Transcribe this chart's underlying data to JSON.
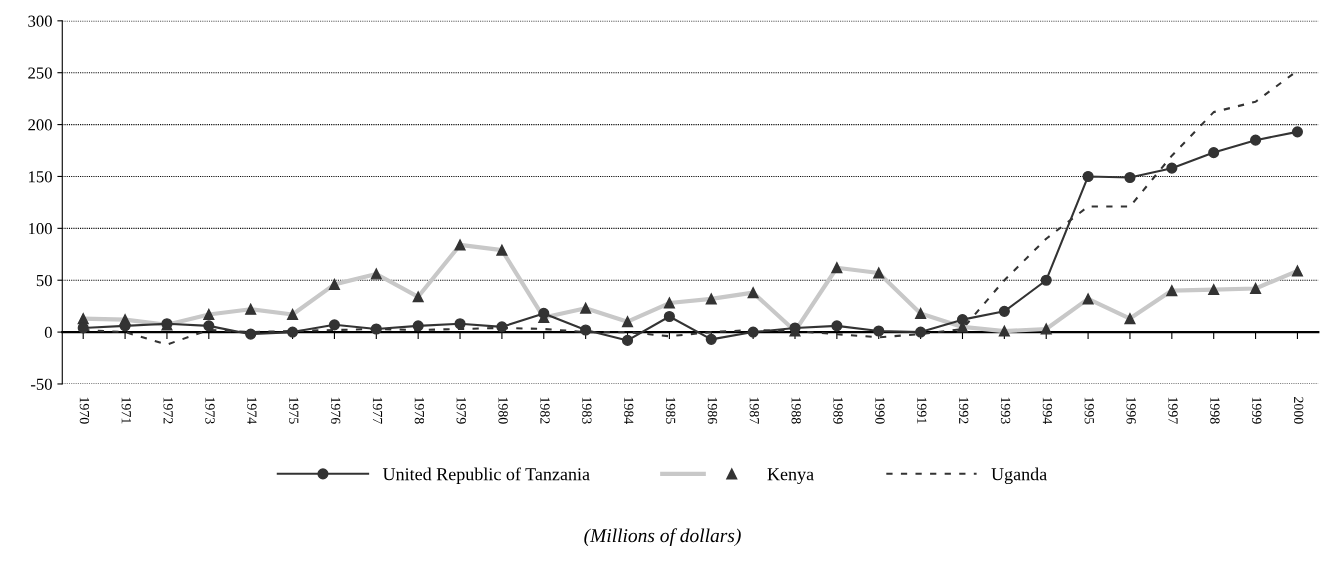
{
  "chart_data": {
    "type": "line",
    "categories": [
      "1970",
      "1971",
      "1972",
      "1973",
      "1974",
      "1975",
      "1976",
      "1977",
      "1978",
      "1979",
      "1980",
      "1982",
      "1983",
      "1984",
      "1985",
      "1986",
      "1987",
      "1988",
      "1989",
      "1990",
      "1991",
      "1992",
      "1993",
      "1994",
      "1995",
      "1996",
      "1997",
      "1998",
      "1999",
      "2000"
    ],
    "series": [
      {
        "name": "United Republic of Tanzania",
        "color": "#333333",
        "marker": "circle",
        "line_style": "solid",
        "values": [
          4,
          6,
          8,
          6,
          -2,
          0,
          7,
          3,
          6,
          8,
          5,
          18,
          2,
          -8,
          15,
          -7,
          0,
          4,
          6,
          1,
          0,
          12,
          20,
          50,
          150,
          149,
          158,
          173,
          185,
          193
        ]
      },
      {
        "name": "Kenya",
        "color": "#c8c8c8",
        "marker": "triangle",
        "line_style": "solid",
        "values": [
          13,
          12,
          7,
          17,
          22,
          17,
          46,
          56,
          34,
          84,
          79,
          14,
          23,
          10,
          28,
          32,
          38,
          1,
          62,
          57,
          18,
          5,
          1,
          3,
          32,
          13,
          40,
          41,
          42,
          59
        ]
      },
      {
        "name": "Uganda",
        "color": "#333333",
        "marker": "none",
        "line_style": "dashed",
        "values": [
          2,
          0,
          -12,
          2,
          0,
          1,
          2,
          3,
          2,
          3,
          4,
          3,
          0,
          0,
          -4,
          0,
          2,
          1,
          -2,
          -5,
          -2,
          3,
          50,
          90,
          121,
          121,
          170,
          212,
          222,
          252
        ]
      }
    ],
    "ylim": [
      -50,
      300
    ],
    "yticks": [
      -50,
      0,
      50,
      100,
      150,
      200,
      250,
      300
    ],
    "grid": "y",
    "legend": "bottom",
    "annotations": [
      "(Millions of dollars)"
    ]
  }
}
